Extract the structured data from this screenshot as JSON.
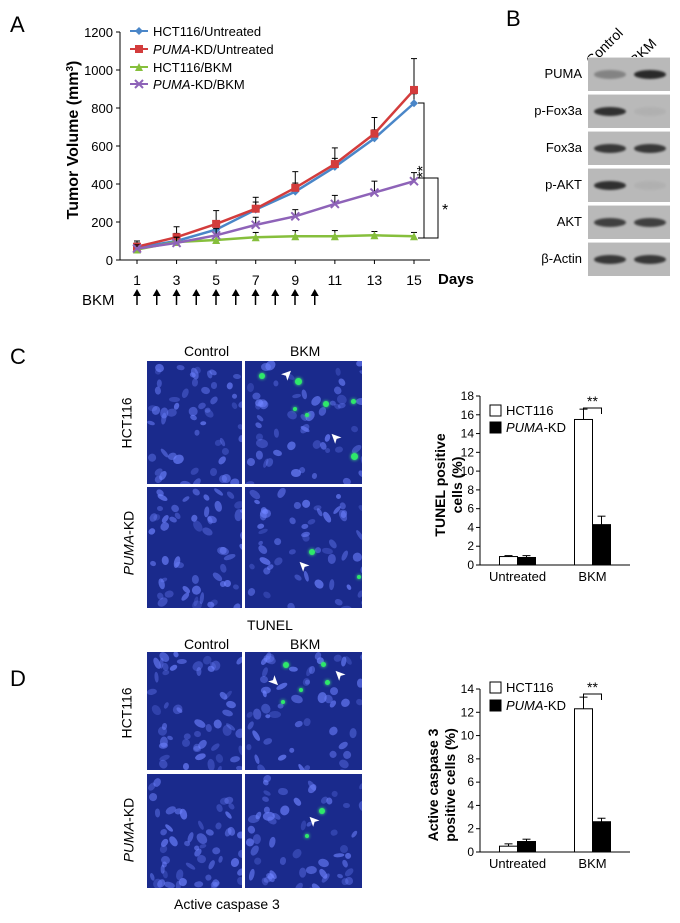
{
  "panels": {
    "a": "A",
    "b": "B",
    "c": "C",
    "d": "D"
  },
  "panel_a": {
    "ylabel": "Tumor Volume (mm",
    "ylabel_sup": "3",
    "ylabel_end": ")",
    "xlabel": "Days",
    "bkm_label": "BKM",
    "y_ticks": [
      "0",
      "200",
      "400",
      "600",
      "800",
      "1000",
      "1200"
    ],
    "x_ticks": [
      "1",
      "3",
      "5",
      "7",
      "9",
      "11",
      "13",
      "15"
    ],
    "significance_inner": "*",
    "significance_outer": "**",
    "legend": [
      "HCT116/Untreated",
      "PUMA-KD/Untreated",
      "HCT116/BKM",
      "PUMA-KD/BKM"
    ]
  },
  "chart_data": [
    {
      "type": "line",
      "xlabel": "Days",
      "ylabel": "Tumor Volume (mm3)",
      "ylim": [
        0,
        1200
      ],
      "x": [
        1,
        3,
        5,
        7,
        9,
        11,
        13,
        15
      ],
      "series": [
        {
          "name": "HCT116/Untreated",
          "color": "#4a86c8",
          "marker": "diamond",
          "values": [
            65,
            100,
            160,
            265,
            360,
            490,
            640,
            825
          ],
          "errors": [
            25,
            40,
            45,
            40,
            45,
            45,
            45,
            50
          ]
        },
        {
          "name": "PUMA-KD/Untreated",
          "color": "#d33c3c",
          "marker": "square",
          "values": [
            70,
            120,
            190,
            270,
            380,
            505,
            665,
            895
          ],
          "errors": [
            30,
            55,
            70,
            60,
            85,
            85,
            85,
            165
          ]
        },
        {
          "name": "HCT116/BKM",
          "color": "#86bf3c",
          "marker": "triangle",
          "values": [
            55,
            95,
            105,
            120,
            125,
            125,
            130,
            125
          ],
          "errors": [
            15,
            25,
            20,
            25,
            30,
            30,
            20,
            20
          ]
        },
        {
          "name": "PUMA-KD/BKM",
          "color": "#8e63b8",
          "marker": "x",
          "values": [
            60,
            90,
            130,
            185,
            230,
            295,
            355,
            415
          ],
          "errors": [
            20,
            30,
            35,
            40,
            35,
            45,
            60,
            45
          ]
        }
      ]
    },
    {
      "type": "bar",
      "ylabel": "TUNEL positive cells (%)",
      "ylim": [
        0,
        18
      ],
      "categories": [
        "Untreated",
        "BKM"
      ],
      "series": [
        {
          "name": "HCT116",
          "color": "#ffffff",
          "values": [
            0.9,
            15.5
          ],
          "errors": [
            0.1,
            1.1
          ]
        },
        {
          "name": "PUMA-KD",
          "color": "#000000",
          "values": [
            0.8,
            4.3
          ],
          "errors": [
            0.2,
            0.9
          ]
        }
      ],
      "significance": "**"
    },
    {
      "type": "bar",
      "ylabel": "Active caspase 3 positive cells (%)",
      "ylim": [
        0,
        14
      ],
      "categories": [
        "Untreated",
        "BKM"
      ],
      "series": [
        {
          "name": "HCT116",
          "color": "#ffffff",
          "values": [
            0.5,
            12.3
          ],
          "errors": [
            0.2,
            1.0
          ]
        },
        {
          "name": "PUMA-KD",
          "color": "#000000",
          "values": [
            0.9,
            2.6
          ],
          "errors": [
            0.2,
            0.3
          ]
        }
      ],
      "significance": "**"
    }
  ],
  "panel_b": {
    "columns": [
      "Control",
      "BKM"
    ],
    "rows": [
      "PUMA",
      "p-Fox3a",
      "Fox3a",
      "p-AKT",
      "AKT",
      "β-Actin"
    ]
  },
  "panel_c": {
    "col_control": "Control",
    "col_bkm": "BKM",
    "row_hct": "HCT116",
    "row_puma": "PUMA",
    "row_puma_suffix": "-KD",
    "caption": "TUNEL",
    "chart_ylabel_1": "TUNEL positive",
    "chart_ylabel_2": "cells (%)",
    "y_ticks": [
      "0",
      "2",
      "4",
      "6",
      "8",
      "10",
      "12",
      "14",
      "16",
      "18"
    ]
  },
  "panel_d": {
    "col_control": "Control",
    "col_bkm": "BKM",
    "row_hct": "HCT116",
    "row_puma": "PUMA",
    "row_puma_suffix": "-KD",
    "caption": "Active caspase 3",
    "chart_ylabel_1": "Active caspase 3",
    "chart_ylabel_2": "positive cells (%)",
    "y_ticks": [
      "0",
      "2",
      "4",
      "6",
      "8",
      "10",
      "12",
      "14"
    ]
  },
  "legend_bar": {
    "hct": "HCT116",
    "puma": "PUMA",
    "puma_suffix": "-KD"
  }
}
